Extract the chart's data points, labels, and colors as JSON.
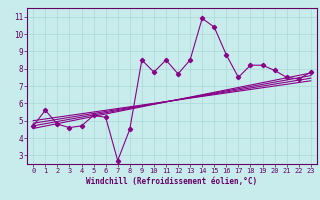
{
  "title": "",
  "xlabel": "Windchill (Refroidissement éolien,°C)",
  "ylabel": "",
  "bg_color": "#c8ecec",
  "grid_color": "#aad8d8",
  "line_color": "#880088",
  "xlim": [
    -0.5,
    23.5
  ],
  "ylim": [
    2.5,
    11.5
  ],
  "xticks": [
    0,
    1,
    2,
    3,
    4,
    5,
    6,
    7,
    8,
    9,
    10,
    11,
    12,
    13,
    14,
    15,
    16,
    17,
    18,
    19,
    20,
    21,
    22,
    23
  ],
  "yticks": [
    3,
    4,
    5,
    6,
    7,
    8,
    9,
    10,
    11
  ],
  "main_x": [
    0,
    1,
    2,
    3,
    4,
    5,
    6,
    7,
    8,
    9,
    10,
    11,
    12,
    13,
    14,
    15,
    16,
    17,
    18,
    19,
    20,
    21,
    22,
    23
  ],
  "main_y": [
    4.7,
    5.6,
    4.8,
    4.6,
    4.7,
    5.3,
    5.2,
    2.7,
    4.5,
    8.5,
    7.8,
    8.5,
    7.7,
    8.5,
    10.9,
    10.4,
    8.8,
    7.5,
    8.2,
    8.2,
    7.9,
    7.5,
    7.4,
    7.8
  ],
  "reg_lines": [
    [
      4.55,
      7.75
    ],
    [
      4.7,
      7.6
    ],
    [
      4.85,
      7.45
    ],
    [
      5.0,
      7.3
    ]
  ]
}
